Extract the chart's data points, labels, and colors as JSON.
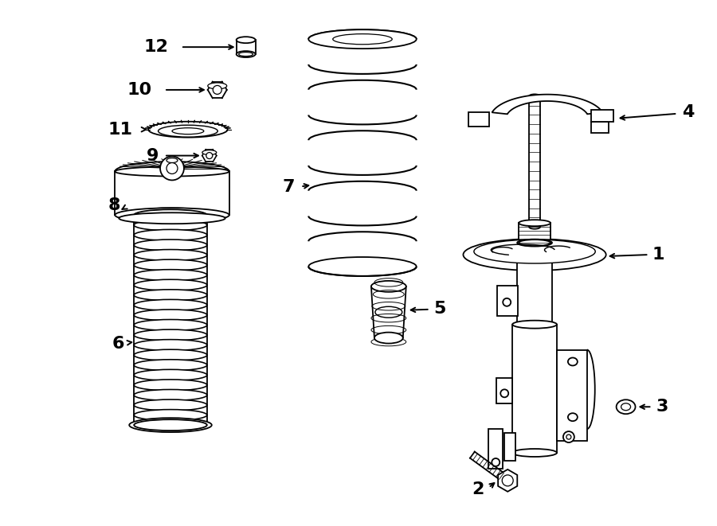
{
  "bg_color": "#ffffff",
  "line_color": "#000000",
  "fig_width": 9.0,
  "fig_height": 6.61,
  "dpi": 100,
  "lw": 1.3,
  "label_fs": 16
}
